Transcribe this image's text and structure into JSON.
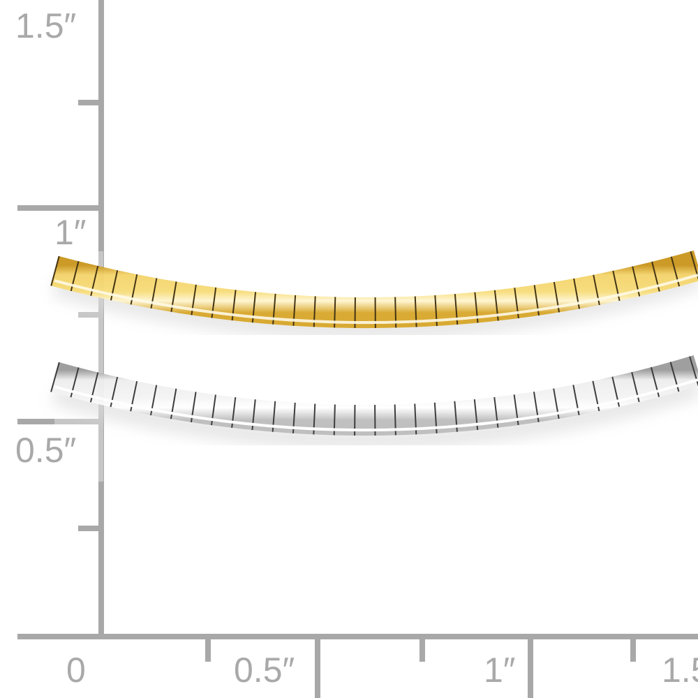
{
  "ruler": {
    "color": "#a8a8a8",
    "y_labels": [
      "1.5″",
      "1″",
      "0.5″"
    ],
    "x_labels": [
      "0",
      "0.5″",
      "1″",
      "1.5"
    ]
  },
  "product": {
    "chains": [
      {
        "name": "gold-omega-chain",
        "color": "#e9c04a"
      },
      {
        "name": "white-omega-chain",
        "color": "#e8e8e8"
      }
    ]
  }
}
